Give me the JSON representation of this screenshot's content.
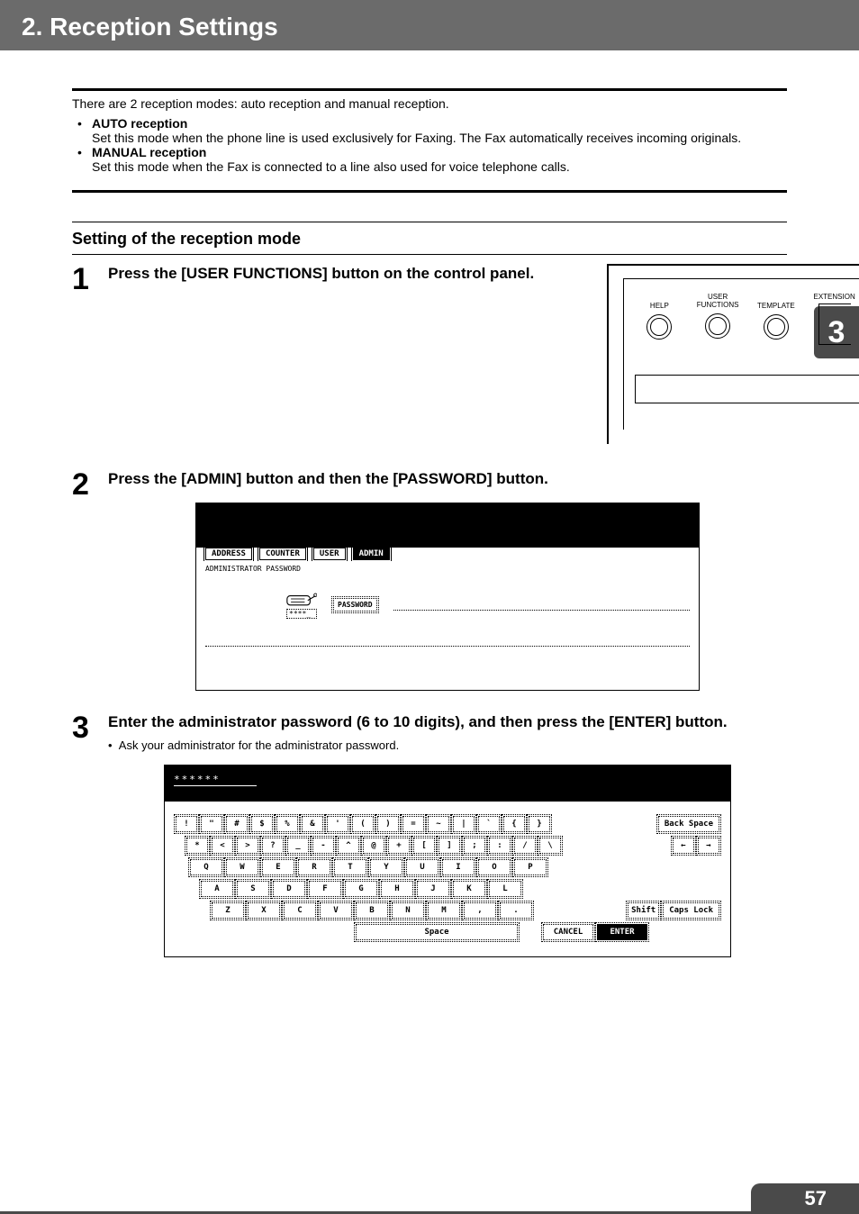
{
  "header": {
    "title": "2. Reception Settings"
  },
  "sideTab": {
    "label": "3"
  },
  "footer": {
    "page": "57"
  },
  "intro": "There are 2 reception modes: auto reception and manual reception.",
  "bullets": [
    {
      "title": "AUTO reception",
      "desc": "Set this mode when the phone line is used exclusively for Faxing. The Fax automatically receives incoming originals."
    },
    {
      "title": "MANUAL reception",
      "desc": "Set this mode when the Fax is connected to a line also used for voice telephone calls."
    }
  ],
  "sectionTitle": "Setting of the reception mode",
  "steps": {
    "s1": {
      "num": "1",
      "instr": "Press the [USER FUNCTIONS] button on the control panel."
    },
    "s2": {
      "num": "2",
      "instr": "Press the [ADMIN] button and then the [PASSWORD] button."
    },
    "s3": {
      "num": "3",
      "instr": "Enter the administrator password (6 to 10 digits), and then press the [ENTER] button.",
      "sub": "Ask your administrator for the administrator password."
    }
  },
  "panel": {
    "btns": {
      "help": "HELP",
      "user": "USER\nFUNCTIONS",
      "template": "TEMPLATE",
      "ext": "EXTENSION"
    }
  },
  "adminScreen": {
    "tabs": {
      "address": "ADDRESS",
      "counter": "COUNTER",
      "user": "USER",
      "admin": "ADMIN"
    },
    "label": "ADMINISTRATOR PASSWORD",
    "stars": "****_",
    "pwdBtn": "PASSWORD"
  },
  "keyboard": {
    "inputMask": "******",
    "row1": [
      "!",
      "\"",
      "#",
      "$",
      "%",
      "&",
      "'",
      "(",
      ")",
      "=",
      "~",
      "|",
      "`",
      "{",
      "}"
    ],
    "row2": [
      "*",
      "<",
      ">",
      "?",
      "_",
      "-",
      "^",
      "@",
      "+",
      "[",
      "]",
      ";",
      ":",
      "/",
      "\\"
    ],
    "row3": [
      "Q",
      "W",
      "E",
      "R",
      "T",
      "Y",
      "U",
      "I",
      "O",
      "P"
    ],
    "row4": [
      "A",
      "S",
      "D",
      "F",
      "G",
      "H",
      "J",
      "K",
      "L"
    ],
    "row5": [
      "Z",
      "X",
      "C",
      "V",
      "B",
      "N",
      "M",
      ",",
      "."
    ],
    "backspace": "Back Space",
    "arrowLeft": "←",
    "arrowRight": "→",
    "shift": "Shift",
    "caps": "Caps Lock",
    "space": "Space",
    "cancel": "CANCEL",
    "enter": "ENTER"
  },
  "colors": {
    "headerBg": "#6b6b6b",
    "sideBg": "#4a4a4a",
    "black": "#000000",
    "white": "#ffffff"
  }
}
